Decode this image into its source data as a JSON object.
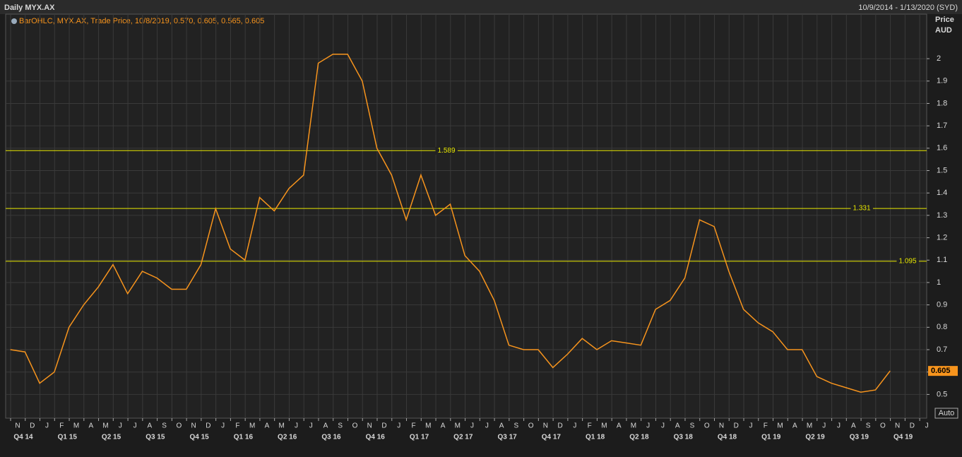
{
  "chart_data": {
    "type": "line",
    "title": "Daily MYX.AX",
    "date_range": "10/9/2014 - 1/13/2020 (SYD)",
    "legend_text": "BarOHLC, MYX.AX, Trade Price,  10/8/2019, 0.570, 0.605, 0.565, 0.605",
    "y_axis_title": "Price",
    "y_axis_unit": "AUD",
    "scale_mode": "Auto",
    "x": [
      "2014-10",
      "2014-11",
      "2014-12",
      "2015-01",
      "2015-02",
      "2015-03",
      "2015-04",
      "2015-05",
      "2015-06",
      "2015-07",
      "2015-08",
      "2015-09",
      "2015-10",
      "2015-11",
      "2015-12",
      "2016-01",
      "2016-02",
      "2016-03",
      "2016-04",
      "2016-05",
      "2016-06",
      "2016-07",
      "2016-08",
      "2016-09",
      "2016-10",
      "2016-11",
      "2016-12",
      "2017-01",
      "2017-02",
      "2017-03",
      "2017-04",
      "2017-05",
      "2017-06",
      "2017-07",
      "2017-08",
      "2017-09",
      "2017-10",
      "2017-11",
      "2017-12",
      "2018-01",
      "2018-02",
      "2018-03",
      "2018-04",
      "2018-05",
      "2018-06",
      "2018-07",
      "2018-08",
      "2018-09",
      "2018-10",
      "2018-11",
      "2018-12",
      "2019-01",
      "2019-02",
      "2019-03",
      "2019-04",
      "2019-05",
      "2019-06",
      "2019-07",
      "2019-08",
      "2019-09",
      "2019-10"
    ],
    "series": [
      {
        "name": "MYX.AX",
        "color": "#f7941d",
        "values": [
          0.7,
          0.69,
          0.55,
          0.6,
          0.8,
          0.9,
          0.98,
          1.08,
          0.95,
          1.05,
          1.02,
          0.97,
          0.97,
          1.08,
          1.33,
          1.15,
          1.1,
          1.38,
          1.32,
          1.42,
          1.48,
          1.98,
          2.02,
          2.02,
          1.9,
          1.6,
          1.48,
          1.28,
          1.48,
          1.3,
          1.35,
          1.12,
          1.05,
          0.92,
          0.72,
          0.7,
          0.7,
          0.62,
          0.68,
          0.75,
          0.7,
          0.74,
          0.73,
          0.72,
          0.88,
          0.92,
          1.02,
          1.28,
          1.25,
          1.05,
          0.88,
          0.82,
          0.78,
          0.7,
          0.7,
          0.58,
          0.55,
          0.53,
          0.51,
          0.52,
          0.605
        ]
      }
    ],
    "levels": [
      1.589,
      1.331,
      1.095
    ],
    "ylim": [
      0.394,
      2.199
    ],
    "yticks": [
      0.5,
      0.6,
      0.7,
      0.8,
      0.9,
      1,
      1.1,
      1.2,
      1.3,
      1.4,
      1.5,
      1.6,
      1.7,
      1.8,
      1.9,
      2
    ],
    "x_month_labels": [
      "N",
      "D",
      "J",
      "F",
      "M",
      "A",
      "M",
      "J",
      "J",
      "A",
      "S",
      "O",
      "N",
      "D",
      "J",
      "F",
      "M",
      "A",
      "M",
      "J",
      "J",
      "A",
      "S",
      "O",
      "N",
      "D",
      "J",
      "F",
      "M",
      "A",
      "M",
      "J",
      "J",
      "A",
      "S",
      "O",
      "N",
      "D",
      "J",
      "F",
      "M",
      "A",
      "M",
      "J",
      "J",
      "A",
      "S",
      "O",
      "N",
      "D",
      "J",
      "F",
      "M",
      "A",
      "M",
      "J",
      "J",
      "A",
      "S",
      "O",
      "N",
      "D",
      "J"
    ],
    "x_quarter_labels": [
      "Q4 14",
      "Q1 15",
      "Q2 15",
      "Q3 15",
      "Q4 15",
      "Q1 16",
      "Q2 16",
      "Q3 16",
      "Q4 16",
      "Q1 17",
      "Q2 17",
      "Q3 17",
      "Q4 17",
      "Q1 18",
      "Q2 18",
      "Q3 18",
      "Q4 18",
      "Q1 19",
      "Q2 19",
      "Q3 19",
      "Q4 19"
    ],
    "grid": true
  }
}
